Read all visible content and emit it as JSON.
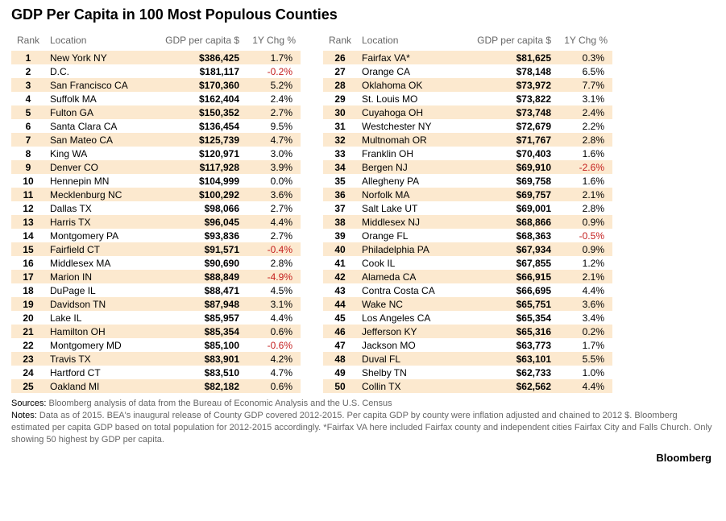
{
  "title": "GDP Per Capita in 100 Most Populous Counties",
  "headers": {
    "rank": "Rank",
    "location": "Location",
    "gdp": "GDP per capita $",
    "chg": "1Y Chg %"
  },
  "colors": {
    "stripe_bg": "#fce9cf",
    "header_text": "#666666",
    "negative": "#c41e1e",
    "background": "#ffffff"
  },
  "rows_left": [
    {
      "rank": "1",
      "loc": "New York NY",
      "gdp": "$386,425",
      "chg": "1.7%",
      "neg": false
    },
    {
      "rank": "2",
      "loc": "D.C.",
      "gdp": "$181,117",
      "chg": "-0.2%",
      "neg": true
    },
    {
      "rank": "3",
      "loc": "San Francisco CA",
      "gdp": "$170,360",
      "chg": "5.2%",
      "neg": false
    },
    {
      "rank": "4",
      "loc": "Suffolk MA",
      "gdp": "$162,404",
      "chg": "2.4%",
      "neg": false
    },
    {
      "rank": "5",
      "loc": "Fulton GA",
      "gdp": "$150,352",
      "chg": "2.7%",
      "neg": false
    },
    {
      "rank": "6",
      "loc": "Santa Clara CA",
      "gdp": "$136,454",
      "chg": "9.5%",
      "neg": false
    },
    {
      "rank": "7",
      "loc": "San Mateo CA",
      "gdp": "$125,739",
      "chg": "4.7%",
      "neg": false
    },
    {
      "rank": "8",
      "loc": "King WA",
      "gdp": "$120,971",
      "chg": "3.0%",
      "neg": false
    },
    {
      "rank": "9",
      "loc": "Denver CO",
      "gdp": "$117,928",
      "chg": "3.9%",
      "neg": false
    },
    {
      "rank": "10",
      "loc": "Hennepin MN",
      "gdp": "$104,999",
      "chg": "0.0%",
      "neg": false
    },
    {
      "rank": "11",
      "loc": "Mecklenburg NC",
      "gdp": "$100,292",
      "chg": "3.6%",
      "neg": false
    },
    {
      "rank": "12",
      "loc": "Dallas TX",
      "gdp": "$98,066",
      "chg": "2.7%",
      "neg": false
    },
    {
      "rank": "13",
      "loc": "Harris TX",
      "gdp": "$96,045",
      "chg": "4.4%",
      "neg": false
    },
    {
      "rank": "14",
      "loc": "Montgomery PA",
      "gdp": "$93,836",
      "chg": "2.7%",
      "neg": false
    },
    {
      "rank": "15",
      "loc": "Fairfield CT",
      "gdp": "$91,571",
      "chg": "-0.4%",
      "neg": true
    },
    {
      "rank": "16",
      "loc": "Middlesex MA",
      "gdp": "$90,690",
      "chg": "2.8%",
      "neg": false
    },
    {
      "rank": "17",
      "loc": "Marion IN",
      "gdp": "$88,849",
      "chg": "-4.9%",
      "neg": true
    },
    {
      "rank": "18",
      "loc": "DuPage IL",
      "gdp": "$88,471",
      "chg": "4.5%",
      "neg": false
    },
    {
      "rank": "19",
      "loc": "Davidson TN",
      "gdp": "$87,948",
      "chg": "3.1%",
      "neg": false
    },
    {
      "rank": "20",
      "loc": "Lake IL",
      "gdp": "$85,957",
      "chg": "4.4%",
      "neg": false
    },
    {
      "rank": "21",
      "loc": "Hamilton OH",
      "gdp": "$85,354",
      "chg": "0.6%",
      "neg": false
    },
    {
      "rank": "22",
      "loc": "Montgomery MD",
      "gdp": "$85,100",
      "chg": "-0.6%",
      "neg": true
    },
    {
      "rank": "23",
      "loc": "Travis TX",
      "gdp": "$83,901",
      "chg": "4.2%",
      "neg": false
    },
    {
      "rank": "24",
      "loc": "Hartford CT",
      "gdp": "$83,510",
      "chg": "4.7%",
      "neg": false
    },
    {
      "rank": "25",
      "loc": "Oakland MI",
      "gdp": "$82,182",
      "chg": "0.6%",
      "neg": false
    }
  ],
  "rows_right": [
    {
      "rank": "26",
      "loc": "Fairfax VA*",
      "gdp": "$81,625",
      "chg": "0.3%",
      "neg": false
    },
    {
      "rank": "27",
      "loc": "Orange CA",
      "gdp": "$78,148",
      "chg": "6.5%",
      "neg": false
    },
    {
      "rank": "28",
      "loc": "Oklahoma OK",
      "gdp": "$73,972",
      "chg": "7.7%",
      "neg": false
    },
    {
      "rank": "29",
      "loc": "St. Louis MO",
      "gdp": "$73,822",
      "chg": "3.1%",
      "neg": false
    },
    {
      "rank": "30",
      "loc": "Cuyahoga OH",
      "gdp": "$73,748",
      "chg": "2.4%",
      "neg": false
    },
    {
      "rank": "31",
      "loc": "Westchester NY",
      "gdp": "$72,679",
      "chg": "2.2%",
      "neg": false
    },
    {
      "rank": "32",
      "loc": "Multnomah OR",
      "gdp": "$71,767",
      "chg": "2.8%",
      "neg": false
    },
    {
      "rank": "33",
      "loc": "Franklin OH",
      "gdp": "$70,403",
      "chg": "1.6%",
      "neg": false
    },
    {
      "rank": "34",
      "loc": "Bergen NJ",
      "gdp": "$69,910",
      "chg": "-2.6%",
      "neg": true
    },
    {
      "rank": "35",
      "loc": "Allegheny PA",
      "gdp": "$69,758",
      "chg": "1.6%",
      "neg": false
    },
    {
      "rank": "36",
      "loc": "Norfolk MA",
      "gdp": "$69,757",
      "chg": "2.1%",
      "neg": false
    },
    {
      "rank": "37",
      "loc": "Salt Lake UT",
      "gdp": "$69,001",
      "chg": "2.8%",
      "neg": false
    },
    {
      "rank": "38",
      "loc": "Middlesex NJ",
      "gdp": "$68,866",
      "chg": "0.9%",
      "neg": false
    },
    {
      "rank": "39",
      "loc": "Orange FL",
      "gdp": "$68,363",
      "chg": "-0.5%",
      "neg": true
    },
    {
      "rank": "40",
      "loc": "Philadelphia PA",
      "gdp": "$67,934",
      "chg": "0.9%",
      "neg": false
    },
    {
      "rank": "41",
      "loc": "Cook IL",
      "gdp": "$67,855",
      "chg": "1.2%",
      "neg": false
    },
    {
      "rank": "42",
      "loc": "Alameda CA",
      "gdp": "$66,915",
      "chg": "2.1%",
      "neg": false
    },
    {
      "rank": "43",
      "loc": "Contra Costa CA",
      "gdp": "$66,695",
      "chg": "4.4%",
      "neg": false
    },
    {
      "rank": "44",
      "loc": "Wake NC",
      "gdp": "$65,751",
      "chg": "3.6%",
      "neg": false
    },
    {
      "rank": "45",
      "loc": "Los Angeles CA",
      "gdp": "$65,354",
      "chg": "3.4%",
      "neg": false
    },
    {
      "rank": "46",
      "loc": "Jefferson KY",
      "gdp": "$65,316",
      "chg": "0.2%",
      "neg": false
    },
    {
      "rank": "47",
      "loc": "Jackson MO",
      "gdp": "$63,773",
      "chg": "1.7%",
      "neg": false
    },
    {
      "rank": "48",
      "loc": "Duval FL",
      "gdp": "$63,101",
      "chg": "5.5%",
      "neg": false
    },
    {
      "rank": "49",
      "loc": "Shelby TN",
      "gdp": "$62,733",
      "chg": "1.0%",
      "neg": false
    },
    {
      "rank": "50",
      "loc": "Collin TX",
      "gdp": "$62,562",
      "chg": "4.4%",
      "neg": false
    }
  ],
  "footer": {
    "sources_label": "Sources:",
    "sources_text": " Bloomberg analysis of data from the Bureau of Economic Analysis and the U.S. Census",
    "notes_label": "Notes:",
    "notes_text": " Data as of 2015. BEA's inaugural release of County GDP covered 2012-2015. Per capita GDP by county were inflation adjusted and chained to 2012 $.  Bloomberg estimated per capita GDP based on total population for 2012-2015 accordingly. *Fairfax VA here included Fairfax county and independent cities Fairfax City and Falls Church. Only showing 50 highest by GDP per capita."
  },
  "brand": "Bloomberg"
}
